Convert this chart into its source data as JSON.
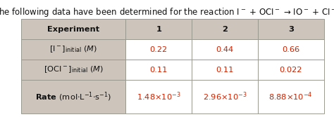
{
  "title": "The following data have been determined for the reaction I$^-$ + OCI$^-$ → IO$^-$ + CI$^-$.",
  "header_bg": "#cdc5bc",
  "white_bg": "#ffffff",
  "border_color": "#999990",
  "col_headers": [
    "Experiment",
    "1",
    "2",
    "3"
  ],
  "row_labels": [
    "$[\\mathrm{I}^-]_{\\mathrm{initial}}\\ (M)$",
    "$[\\mathrm{OCI}^-]_{\\mathrm{initial}}\\ (M)$",
    "Rate $(\\mathrm{mol}{\\cdot}\\mathrm{L}^{-1}{\\cdot}\\mathrm{s}^{-1})$"
  ],
  "row_values": [
    [
      "0.22",
      "0.44",
      "0.66"
    ],
    [
      "0.11",
      "0.11",
      "0.022"
    ],
    [
      "$1.48{\\times}10^{-3}$",
      "$2.96{\\times}10^{-3}$",
      "$8.88{\\times}10^{-4}$"
    ]
  ],
  "row_label_bold": [
    false,
    false,
    true
  ],
  "value_color": "#cc2200",
  "title_fontsize": 8.5,
  "cell_fontsize": 8.2,
  "figsize": [
    4.74,
    1.67
  ],
  "dpi": 100
}
